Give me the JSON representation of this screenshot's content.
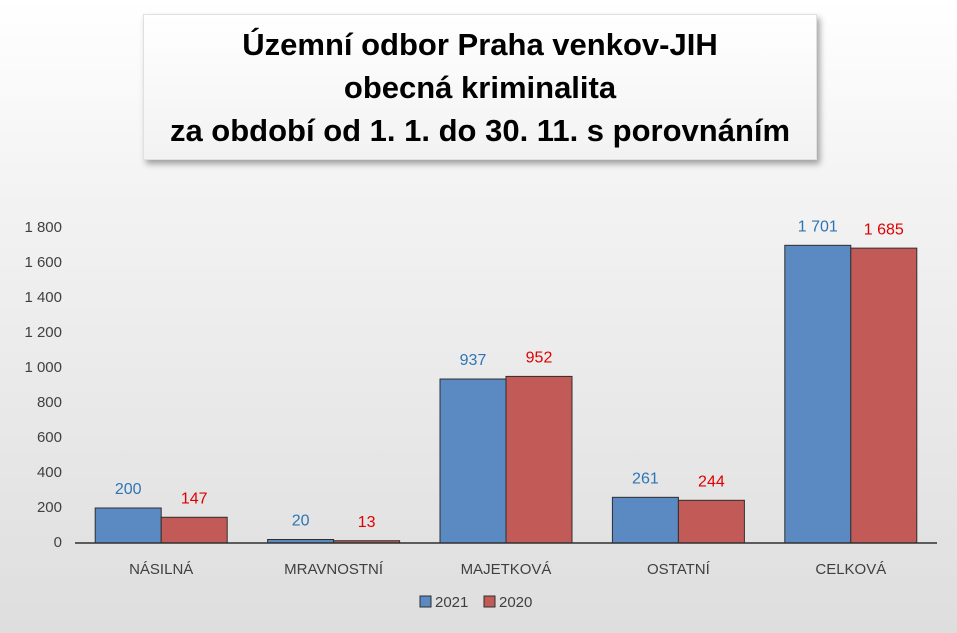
{
  "chart_data": {
    "type": "bar",
    "title_lines": [
      "Územní odbor Praha venkov-JIH",
      "obecná kriminalita",
      "za období od 1. 1. do 30. 11. s porovnáním"
    ],
    "categories": [
      "NÁSILNÁ",
      "MRAVNOSTNÍ",
      "MAJETKOVÁ",
      "OSTATNÍ",
      "CELKOVÁ"
    ],
    "series": [
      {
        "name": "2021",
        "color": "#5b89c2",
        "label_color": "#2e75b6",
        "values": [
          200,
          20,
          937,
          261,
          1701
        ],
        "value_labels": [
          "200",
          "20",
          "937",
          "261",
          "1 701"
        ]
      },
      {
        "name": "2020",
        "color": "#c25b58",
        "label_color": "#e00000",
        "values": [
          147,
          13,
          952,
          244,
          1685
        ],
        "value_labels": [
          "147",
          "13",
          "952",
          "244",
          "1 685"
        ]
      }
    ],
    "ylim": [
      0,
      1800
    ],
    "yticks": [
      0,
      200,
      400,
      600,
      800,
      {
        "value": 1000,
        "label": "1 000"
      },
      {
        "value": 1200,
        "label": "1 200"
      },
      {
        "value": 1400,
        "label": "1 400"
      },
      {
        "value": 1600,
        "label": "1 600"
      },
      {
        "value": 1800,
        "label": "1 800"
      }
    ],
    "grid": false,
    "legend": "bottom"
  }
}
